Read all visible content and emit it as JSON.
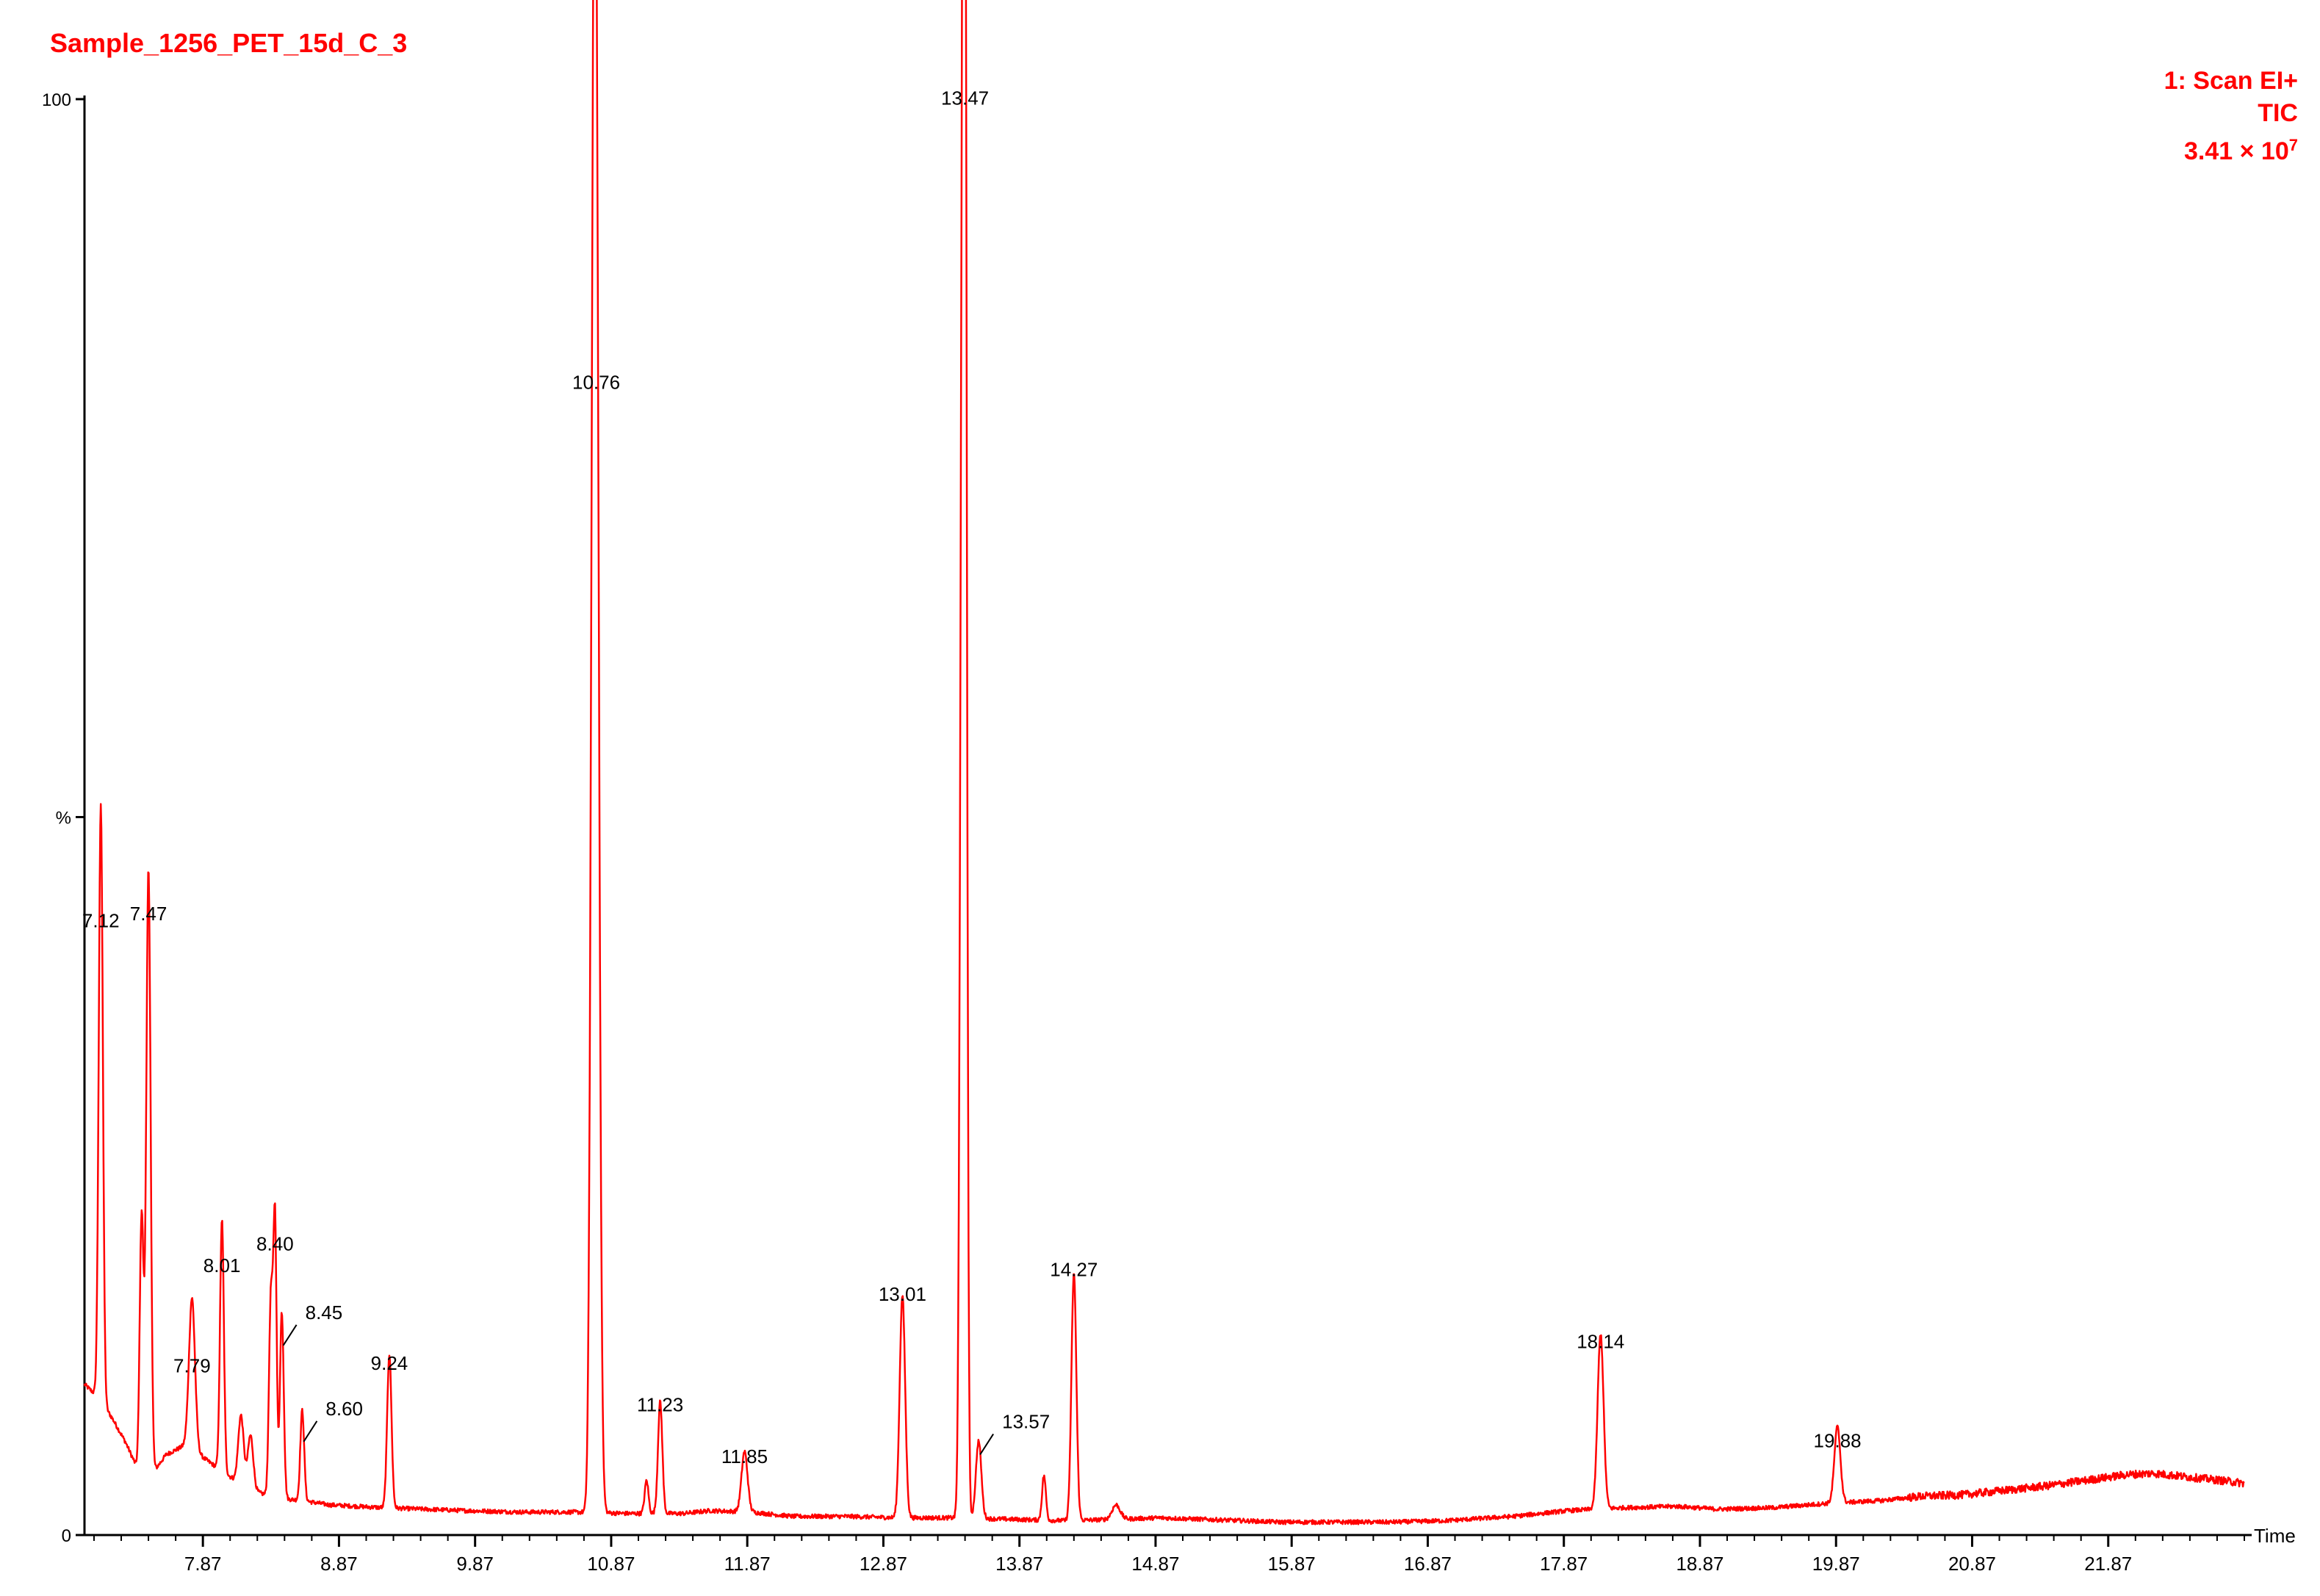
{
  "header": {
    "sample_name": "Sample_1256_PET_15d_C_3",
    "scan_label": "1: Scan EI+",
    "trace_label": "TIC",
    "intensity_mantissa": "3.41 × 10",
    "intensity_exponent": "7"
  },
  "colors": {
    "trace": "#ff0000",
    "axis": "#000000",
    "header_text": "#ff0000"
  },
  "chart_data": {
    "type": "line",
    "title": "Sample_1256_PET_15d_C_3",
    "xlabel": "Time",
    "ylabel": "%",
    "xlim": [
      7.0,
      22.87
    ],
    "ylim": [
      0,
      100
    ],
    "x_ticks": [
      7.87,
      8.87,
      9.87,
      10.87,
      11.87,
      12.87,
      13.87,
      14.87,
      15.87,
      16.87,
      17.87,
      18.87,
      19.87,
      20.87,
      21.87
    ],
    "x_tick_labels": [
      "7.87",
      "8.87",
      "9.87",
      "10.87",
      "11.87",
      "12.87",
      "13.87",
      "14.87",
      "15.87",
      "16.87",
      "17.87",
      "18.87",
      "19.87",
      "20.87",
      "21.87"
    ],
    "y_tick_labels": [
      {
        "value": 100,
        "label": "100"
      },
      {
        "value": 50,
        "label": "%"
      },
      {
        "value": 0,
        "label": "0"
      }
    ],
    "grid": false,
    "series": [
      {
        "color": "#ff0000",
        "baseline": [
          [
            7.0,
            10.5
          ],
          [
            7.1,
            9.6
          ],
          [
            7.2,
            8.2
          ],
          [
            7.3,
            6.5
          ],
          [
            7.4,
            4.4
          ],
          [
            7.5,
            4.3
          ],
          [
            7.6,
            5.6
          ],
          [
            7.75,
            6.3
          ],
          [
            7.9,
            5.2
          ],
          [
            8.05,
            4.2
          ],
          [
            8.2,
            3.2
          ],
          [
            8.4,
            2.6
          ],
          [
            8.6,
            2.4
          ],
          [
            8.8,
            2.1
          ],
          [
            9.0,
            2.0
          ],
          [
            9.2,
            1.9
          ],
          [
            9.5,
            1.8
          ],
          [
            9.8,
            1.7
          ],
          [
            10.2,
            1.6
          ],
          [
            10.6,
            1.6
          ],
          [
            11.0,
            1.5
          ],
          [
            11.4,
            1.5
          ],
          [
            11.6,
            1.7
          ],
          [
            11.9,
            1.6
          ],
          [
            12.2,
            1.3
          ],
          [
            12.6,
            1.3
          ],
          [
            13.0,
            1.2
          ],
          [
            13.4,
            1.2
          ],
          [
            13.8,
            1.1
          ],
          [
            14.2,
            1.0
          ],
          [
            14.6,
            1.1
          ],
          [
            14.9,
            1.2
          ],
          [
            15.2,
            1.1
          ],
          [
            15.5,
            1.0
          ],
          [
            15.8,
            0.9
          ],
          [
            16.2,
            0.9
          ],
          [
            16.6,
            0.9
          ],
          [
            17.0,
            1.0
          ],
          [
            17.5,
            1.3
          ],
          [
            17.9,
            1.7
          ],
          [
            18.3,
            1.9
          ],
          [
            18.7,
            2.0
          ],
          [
            19.0,
            1.8
          ],
          [
            19.4,
            1.9
          ],
          [
            19.8,
            2.2
          ],
          [
            20.2,
            2.4
          ],
          [
            20.5,
            2.7
          ],
          [
            20.8,
            2.8
          ],
          [
            21.1,
            3.1
          ],
          [
            21.4,
            3.4
          ],
          [
            21.7,
            3.8
          ],
          [
            22.0,
            4.2
          ],
          [
            22.2,
            4.3
          ],
          [
            22.5,
            4.0
          ],
          [
            22.7,
            3.8
          ],
          [
            22.87,
            3.6
          ]
        ],
        "peaks": [
          {
            "rt": 7.12,
            "height": 41.5,
            "width": 0.015
          },
          {
            "rt": 7.42,
            "height": 18.0,
            "width": 0.014
          },
          {
            "rt": 7.47,
            "height": 42.0,
            "width": 0.016
          },
          {
            "rt": 7.79,
            "height": 10.5,
            "width": 0.022
          },
          {
            "rt": 8.01,
            "height": 17.5,
            "width": 0.014
          },
          {
            "rt": 8.15,
            "height": 4.8,
            "width": 0.02
          },
          {
            "rt": 8.22,
            "height": 3.8,
            "width": 0.02
          },
          {
            "rt": 8.37,
            "height": 14.0,
            "width": 0.014
          },
          {
            "rt": 8.4,
            "height": 19.0,
            "width": 0.012
          },
          {
            "rt": 8.45,
            "height": 13.0,
            "width": 0.014
          },
          {
            "rt": 8.6,
            "height": 6.3,
            "width": 0.014
          },
          {
            "rt": 9.24,
            "height": 10.7,
            "width": 0.016
          },
          {
            "rt": 10.74,
            "height": 60.0,
            "width": 0.02
          },
          {
            "rt": 10.76,
            "height": 79.0,
            "width": 0.022
          },
          {
            "rt": 11.13,
            "height": 2.3,
            "width": 0.014
          },
          {
            "rt": 11.23,
            "height": 7.8,
            "width": 0.016
          },
          {
            "rt": 11.85,
            "height": 4.2,
            "width": 0.022
          },
          {
            "rt": 13.01,
            "height": 15.5,
            "width": 0.02
          },
          {
            "rt": 13.45,
            "height": 79.0,
            "width": 0.016
          },
          {
            "rt": 13.47,
            "height": 98.8,
            "width": 0.014
          },
          {
            "rt": 13.57,
            "height": 5.4,
            "width": 0.02
          },
          {
            "rt": 14.05,
            "height": 3.1,
            "width": 0.014
          },
          {
            "rt": 14.27,
            "height": 17.2,
            "width": 0.018
          },
          {
            "rt": 14.58,
            "height": 1.0,
            "width": 0.03
          },
          {
            "rt": 18.14,
            "height": 12.2,
            "width": 0.022
          },
          {
            "rt": 19.88,
            "height": 5.3,
            "width": 0.022
          }
        ]
      }
    ],
    "peak_labels": [
      {
        "label": "7.12",
        "x": 7.12,
        "y": 41.5,
        "leader": false
      },
      {
        "label": "7.47",
        "x": 7.47,
        "y": 42.0,
        "leader": false
      },
      {
        "label": "7.79",
        "x": 7.79,
        "y": 10.5,
        "leader": false
      },
      {
        "label": "8.01",
        "x": 8.01,
        "y": 17.5,
        "leader": false
      },
      {
        "label": "8.40",
        "x": 8.4,
        "y": 19.0,
        "leader": false
      },
      {
        "label": "8.45",
        "x": 8.45,
        "y": 13.0,
        "leader": true
      },
      {
        "label": "8.60",
        "x": 8.6,
        "y": 6.3,
        "leader": true
      },
      {
        "label": "9.24",
        "x": 9.24,
        "y": 10.7,
        "leader": false
      },
      {
        "label": "10.76",
        "x": 10.76,
        "y": 79.0,
        "leader": false
      },
      {
        "label": "11.23",
        "x": 11.23,
        "y": 7.8,
        "leader": false
      },
      {
        "label": "11.85",
        "x": 11.85,
        "y": 4.2,
        "leader": false
      },
      {
        "label": "13.01",
        "x": 13.01,
        "y": 15.5,
        "leader": false
      },
      {
        "label": "13.47",
        "x": 13.47,
        "y": 98.8,
        "leader": false
      },
      {
        "label": "13.57",
        "x": 13.57,
        "y": 5.4,
        "leader": true
      },
      {
        "label": "14.27",
        "x": 14.27,
        "y": 17.2,
        "leader": false
      },
      {
        "label": "18.14",
        "x": 18.14,
        "y": 12.2,
        "leader": false
      },
      {
        "label": "19.88",
        "x": 19.88,
        "y": 5.3,
        "leader": false
      }
    ]
  }
}
